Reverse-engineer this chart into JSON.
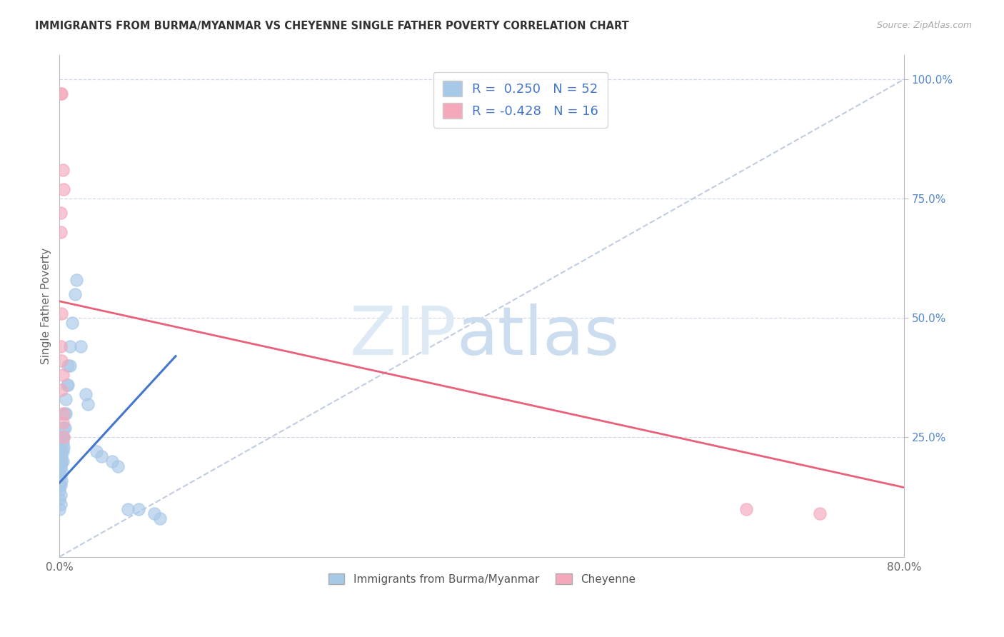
{
  "title": "IMMIGRANTS FROM BURMA/MYANMAR VS CHEYENNE SINGLE FATHER POVERTY CORRELATION CHART",
  "source": "Source: ZipAtlas.com",
  "ylabel": "Single Father Poverty",
  "right_yticks": [
    "100.0%",
    "75.0%",
    "50.0%",
    "25.0%"
  ],
  "right_ytick_vals": [
    1.0,
    0.75,
    0.5,
    0.25
  ],
  "legend_label1": "Immigrants from Burma/Myanmar",
  "legend_label2": "Cheyenne",
  "R1": 0.25,
  "N1": 52,
  "R2": -0.428,
  "N2": 16,
  "blue_color": "#a8c8e8",
  "pink_color": "#f4a8ba",
  "blue_line_color": "#4477cc",
  "pink_line_color": "#e8607a",
  "diagonal_color": "#c0cce0",
  "xlim": [
    0.0,
    0.8
  ],
  "ylim": [
    0.0,
    1.05
  ],
  "blue_points_x": [
    0.0,
    0.0,
    0.0,
    0.0,
    0.0,
    0.0,
    0.0,
    0.0,
    0.001,
    0.001,
    0.001,
    0.001,
    0.001,
    0.001,
    0.001,
    0.001,
    0.002,
    0.002,
    0.002,
    0.002,
    0.002,
    0.002,
    0.003,
    0.003,
    0.003,
    0.003,
    0.004,
    0.004,
    0.004,
    0.005,
    0.005,
    0.006,
    0.006,
    0.007,
    0.008,
    0.008,
    0.01,
    0.01,
    0.012,
    0.015,
    0.016,
    0.02,
    0.025,
    0.027,
    0.035,
    0.04,
    0.05,
    0.055,
    0.065,
    0.075,
    0.09,
    0.095
  ],
  "blue_points_y": [
    0.2,
    0.19,
    0.18,
    0.17,
    0.15,
    0.14,
    0.12,
    0.1,
    0.22,
    0.21,
    0.2,
    0.19,
    0.17,
    0.15,
    0.13,
    0.11,
    0.23,
    0.22,
    0.21,
    0.2,
    0.18,
    0.16,
    0.25,
    0.24,
    0.22,
    0.2,
    0.27,
    0.25,
    0.23,
    0.3,
    0.27,
    0.33,
    0.3,
    0.36,
    0.4,
    0.36,
    0.44,
    0.4,
    0.49,
    0.55,
    0.58,
    0.44,
    0.34,
    0.32,
    0.22,
    0.21,
    0.2,
    0.19,
    0.1,
    0.1,
    0.09,
    0.08
  ],
  "pink_points_x": [
    0.001,
    0.002,
    0.003,
    0.004,
    0.001,
    0.001,
    0.002,
    0.001,
    0.002,
    0.003,
    0.002,
    0.003,
    0.003,
    0.004,
    0.65,
    0.72
  ],
  "pink_points_y": [
    0.97,
    0.97,
    0.81,
    0.77,
    0.72,
    0.68,
    0.51,
    0.44,
    0.41,
    0.38,
    0.35,
    0.3,
    0.28,
    0.25,
    0.1,
    0.09
  ],
  "blue_line_x": [
    0.0,
    0.11
  ],
  "blue_line_y": [
    0.155,
    0.42
  ],
  "pink_line_x": [
    0.0,
    0.8
  ],
  "pink_line_y": [
    0.535,
    0.145
  ]
}
